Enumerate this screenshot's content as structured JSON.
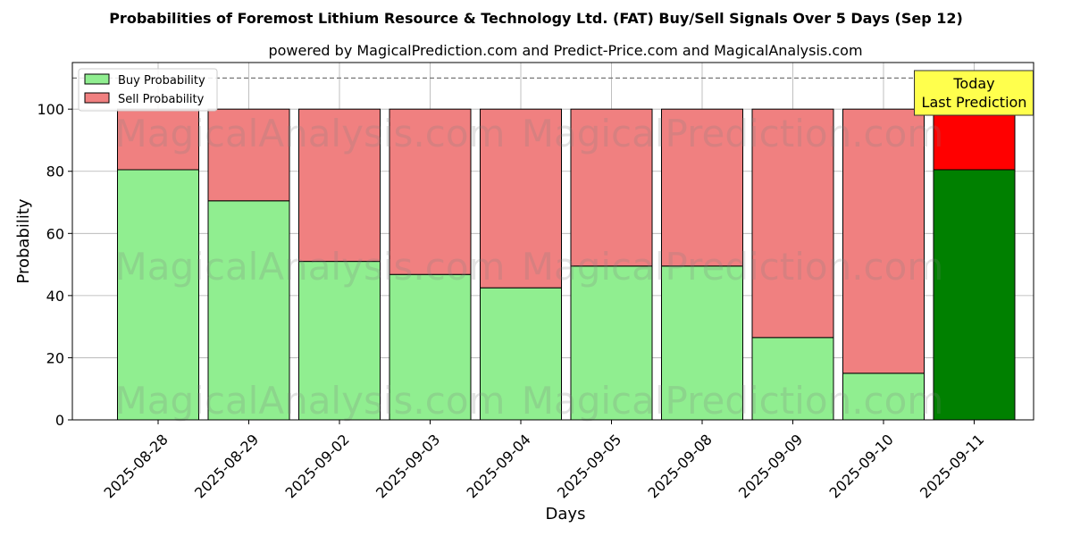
{
  "chart_data": {
    "type": "bar",
    "stacked": true,
    "title": "Probabilities of Foremost Lithium Resource & Technology Ltd. (FAT) Buy/Sell Signals Over 5 Days (Sep 12)",
    "subtitle": "powered by MagicalPrediction.com and Predict-Price.com and MagicalAnalysis.com",
    "xlabel": "Days",
    "ylabel": "Probability",
    "ylim": [
      0,
      115
    ],
    "yticks": [
      0,
      20,
      40,
      60,
      80,
      100
    ],
    "reference_line": 110,
    "grid": true,
    "legend_position": "top-left",
    "categories": [
      "2025-08-28",
      "2025-08-29",
      "2025-09-02",
      "2025-09-03",
      "2025-09-04",
      "2025-09-05",
      "2025-09-08",
      "2025-09-09",
      "2025-09-10",
      "2025-09-11"
    ],
    "series": [
      {
        "name": "Buy Probability",
        "color": "#90ee90",
        "highlight_color": "#008000",
        "values": [
          80.5,
          70.5,
          51.0,
          46.8,
          42.5,
          49.5,
          49.5,
          26.5,
          15.0,
          80.5
        ]
      },
      {
        "name": "Sell Probability",
        "color": "#f08080",
        "highlight_color": "#ff0000",
        "values": [
          19.5,
          29.5,
          49.0,
          53.2,
          57.5,
          50.5,
          50.5,
          73.5,
          85.0,
          19.5
        ]
      }
    ],
    "highlight_index": 9,
    "annotation": {
      "line1": "Today",
      "line2": "Last Prediction",
      "color": "#ffff4d"
    },
    "watermarks": [
      "MagicalAnalysis.com",
      "MagicalPrediction.com"
    ]
  }
}
